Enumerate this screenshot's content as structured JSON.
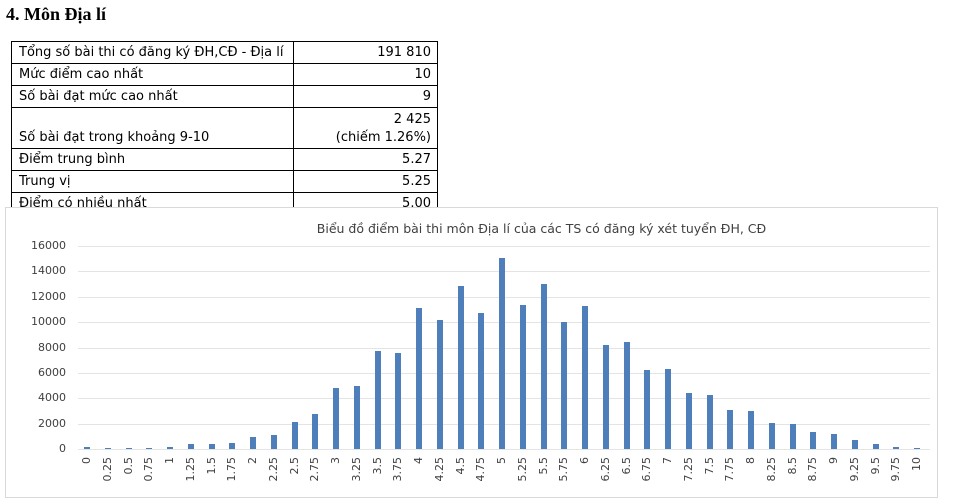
{
  "heading": "4. Môn Địa lí",
  "stats": [
    {
      "label": "Tổng số bài thi có đăng ký ĐH,CĐ - Địa lí",
      "value": "191 810"
    },
    {
      "label": "Mức điểm cao nhất",
      "value": "10"
    },
    {
      "label": "Số bài đạt mức cao nhất",
      "value": "9"
    },
    {
      "label": "Số bài đạt trong khoảng 9-10",
      "value": "2 425",
      "value2": "(chiếm 1.26%)"
    },
    {
      "label": "Điểm trung bình",
      "value": "5.27"
    },
    {
      "label": "Trung vị",
      "value": "5.25"
    },
    {
      "label": "Điểm có nhiều nhất",
      "value": "5.00"
    }
  ],
  "colors": {
    "bar": "#4f7fba",
    "grid": "#e4e4e4",
    "axis_text": "#404040"
  },
  "chart_data": {
    "type": "bar",
    "title": "Biểu đồ điểm bài thi môn Địa lí của các TS có đăng ký xét tuyển ĐH, CĐ",
    "xlabel": "",
    "ylabel": "",
    "ylim": [
      0,
      16000
    ],
    "yticks": [
      "0",
      "2000",
      "4000",
      "6000",
      "8000",
      "10000",
      "12000",
      "14000",
      "16000"
    ],
    "grid": true,
    "legend": "none",
    "categories": [
      "0",
      "0.25",
      "0.5",
      "0.75",
      "1",
      "1.25",
      "1.5",
      "1.75",
      "2",
      "2.25",
      "2.5",
      "2.75",
      "3",
      "3.25",
      "3.5",
      "3.75",
      "4",
      "4.25",
      "4.5",
      "4.75",
      "5",
      "5.25",
      "5.5",
      "5.75",
      "6",
      "6.25",
      "6.5",
      "6.75",
      "7",
      "7.25",
      "7.5",
      "7.75",
      "8",
      "8.25",
      "8.5",
      "8.75",
      "9",
      "9.25",
      "9.5",
      "9.75",
      "10"
    ],
    "values": [
      180,
      50,
      60,
      60,
      140,
      380,
      400,
      470,
      920,
      1100,
      2150,
      2780,
      4780,
      5000,
      7690,
      7530,
      11110,
      10200,
      12860,
      10720,
      15060,
      11320,
      13000,
      10040,
      11300,
      8180,
      8470,
      6200,
      6300,
      4390,
      4290,
      3110,
      3030,
      2010,
      1990,
      1360,
      1150,
      680,
      420,
      130,
      9
    ]
  }
}
